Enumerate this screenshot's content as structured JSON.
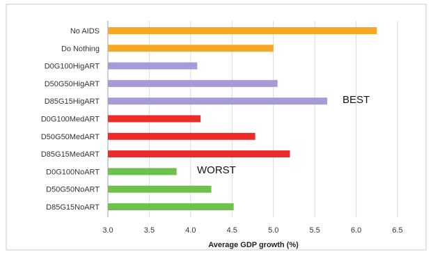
{
  "chart_data": {
    "type": "bar",
    "orientation": "horizontal",
    "xlabel": "Average GDP growth (%)",
    "xlim": [
      3.0,
      6.5
    ],
    "xticks": [
      "3.0",
      "3.5",
      "4.0",
      "4.5",
      "5.0",
      "5.5",
      "6.0",
      "6.5"
    ],
    "grid": true,
    "categories": [
      "No AIDS",
      "Do Nothing",
      "D0G100HigART",
      "D50G50HigART",
      "D85G15HigART",
      "D0G100MedART",
      "D50G50MedART",
      "D85G15MedART",
      "D0G100NoART",
      "D50G50NoART",
      "D85G15NoART"
    ],
    "values": [
      6.25,
      5.0,
      4.08,
      5.05,
      5.65,
      4.12,
      4.78,
      5.2,
      3.83,
      4.25,
      4.52
    ],
    "colors": [
      "#f7a823",
      "#f7a823",
      "#a79ad6",
      "#a79ad6",
      "#a79ad6",
      "#ee2a2a",
      "#ee2a2a",
      "#ee2a2a",
      "#6cc24a",
      "#6cc24a",
      "#6cc24a"
    ],
    "annotations": [
      "BEST",
      "WORST"
    ]
  }
}
